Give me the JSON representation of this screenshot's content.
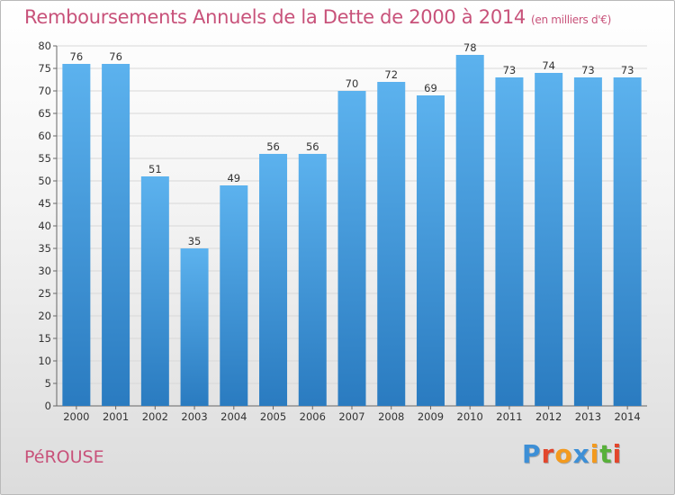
{
  "header": {
    "title": "Remboursements Annuels de la Dette de 2000 à 2014",
    "subtitle": "(en milliers d'€)"
  },
  "footer": {
    "commune": "PéROUSE",
    "logo": "Proxiti"
  },
  "colors": {
    "title": "#c8527a",
    "bar_light": "#5cb2ee",
    "bar_dark": "#2a7bc0",
    "grid": "#d8d8d8",
    "logo_letters": [
      "#3d8fd6",
      "#e2462c",
      "#f39a1e",
      "#3d8fd6",
      "#f39a1e",
      "#58b03a",
      "#e2462c"
    ]
  },
  "chart_data": {
    "type": "bar",
    "title": "Remboursements Annuels de la Dette de 2000 à 2014",
    "subtitle": "(en milliers d'€)",
    "xlabel": "",
    "ylabel": "",
    "categories": [
      "2000",
      "2001",
      "2002",
      "2003",
      "2004",
      "2005",
      "2006",
      "2007",
      "2008",
      "2009",
      "2010",
      "2011",
      "2012",
      "2013",
      "2014"
    ],
    "values": [
      76,
      76,
      51,
      35,
      49,
      56,
      56,
      70,
      72,
      69,
      78,
      73,
      74,
      73,
      73
    ],
    "ylim": [
      0,
      80
    ],
    "yticks": [
      0,
      5,
      10,
      15,
      20,
      25,
      30,
      35,
      40,
      45,
      50,
      55,
      60,
      65,
      70,
      75,
      80
    ],
    "grid": true,
    "legend": "none"
  }
}
